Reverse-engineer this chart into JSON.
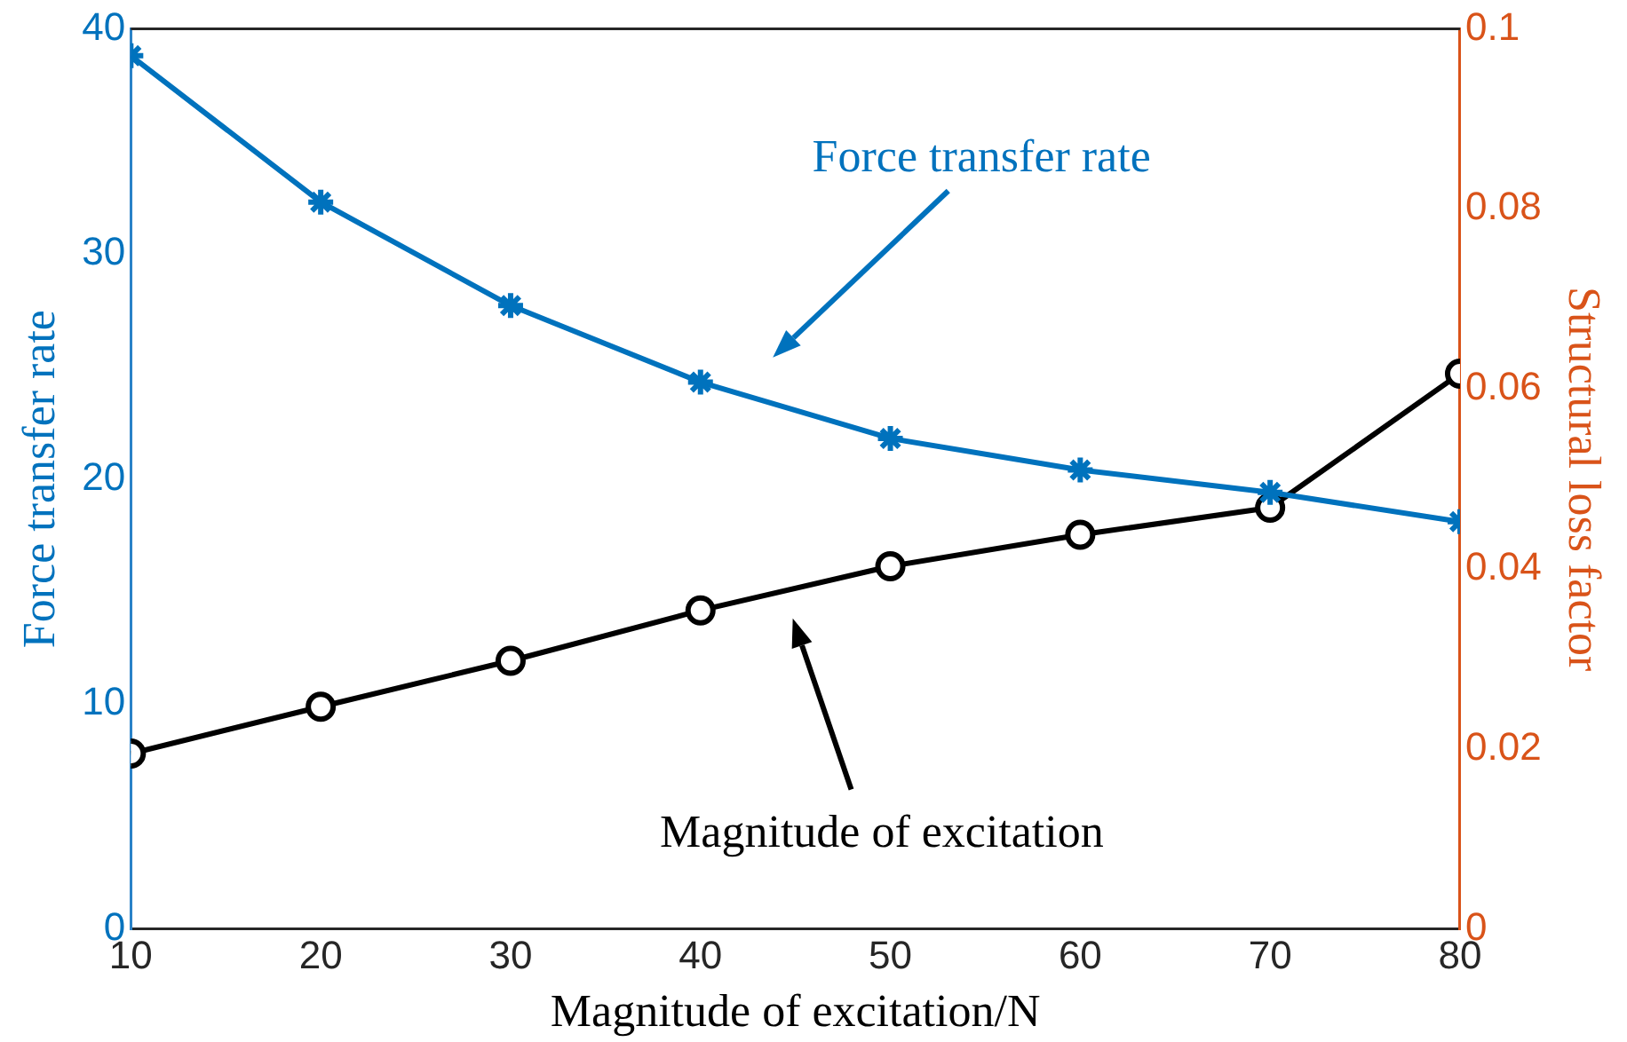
{
  "chart_data": {
    "type": "line",
    "xlabel": "Magnitude of excitation/N",
    "ylabel": "Force transfer rate",
    "y2label": "Structural loss factor",
    "x": [
      10,
      20,
      30,
      40,
      50,
      60,
      70,
      80
    ],
    "xlim": [
      10,
      80
    ],
    "xticks": [
      10,
      20,
      30,
      40,
      50,
      60,
      70,
      80
    ],
    "ylim": [
      0,
      40
    ],
    "yticks": [
      0,
      10,
      20,
      30,
      40
    ],
    "y2lim": [
      0,
      0.1
    ],
    "y2ticks": [
      0,
      0.02,
      0.04,
      0.06,
      0.08,
      0.1
    ],
    "series": [
      {
        "name": "Force transfer rate",
        "color": "#0072bd",
        "axis": "y",
        "marker": "cross",
        "values": [
          38.8,
          32.3,
          27.7,
          24.3,
          21.8,
          20.4,
          19.4,
          18.1
        ]
      },
      {
        "name": "Magnitude of excitation",
        "color": "#000000",
        "axis": "y2",
        "marker": "circle",
        "values": [
          0.0195,
          0.0247,
          0.0298,
          0.0354,
          0.0403,
          0.0438,
          0.0468,
          0.0617
        ]
      }
    ],
    "grid": false,
    "legend": false,
    "line_style": "solid"
  }
}
